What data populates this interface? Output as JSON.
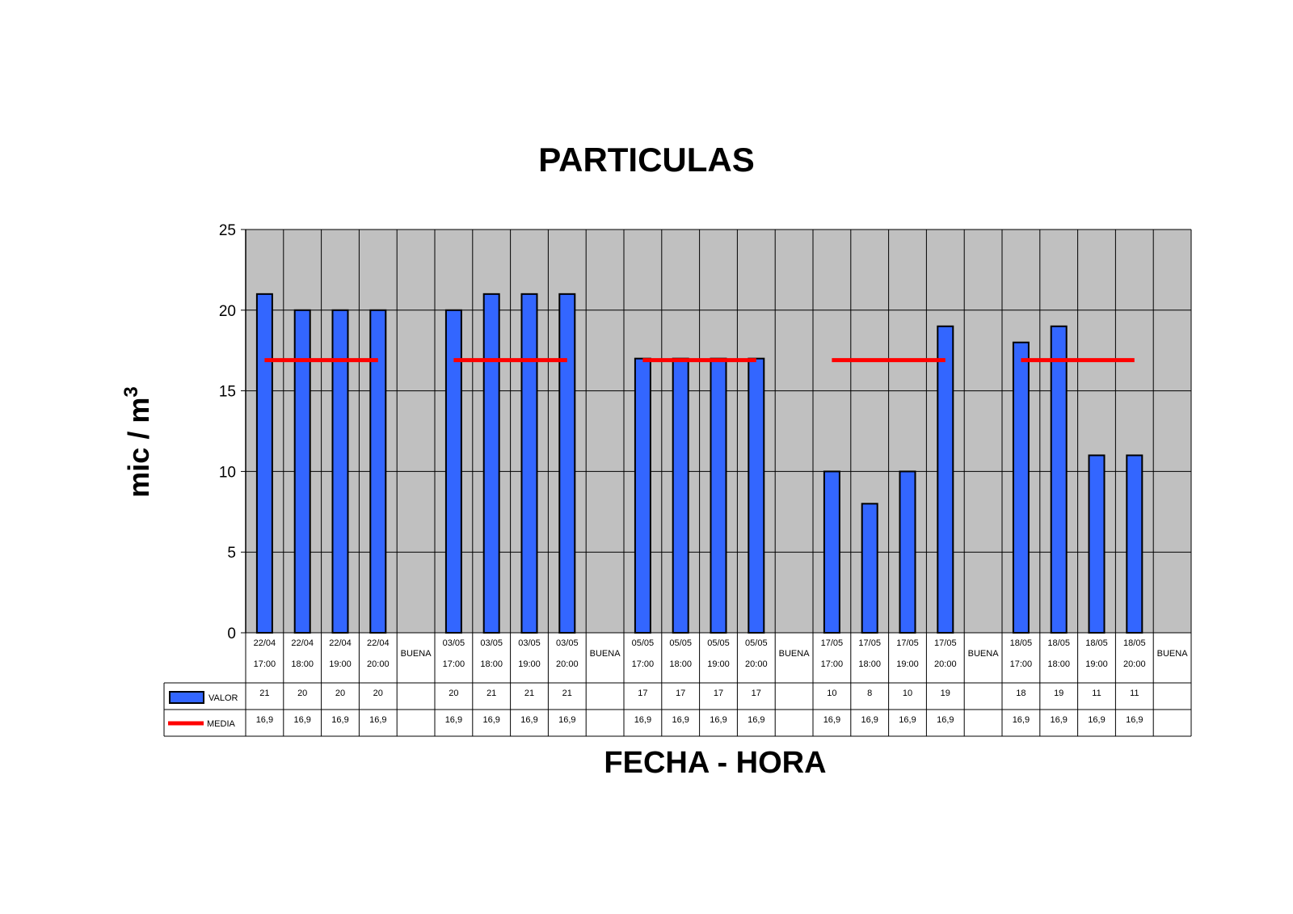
{
  "chart_data": {
    "type": "bar",
    "title": "PARTICULAS",
    "xlabel": "FECHA - HORA",
    "ylabel": "mic / m",
    "ylabel_superscript": "3",
    "ylim": [
      0,
      25
    ],
    "yticks": [
      "0",
      "5",
      "10",
      "15",
      "20",
      "25"
    ],
    "grid": true,
    "categories": [
      {
        "date": "22/04",
        "time": "17:00"
      },
      {
        "date": "22/04",
        "time": "18:00"
      },
      {
        "date": "22/04",
        "time": "19:00"
      },
      {
        "date": "22/04",
        "time": "20:00"
      },
      {
        "date": "BUENA",
        "time": ""
      },
      {
        "date": "03/05",
        "time": "17:00"
      },
      {
        "date": "03/05",
        "time": "18:00"
      },
      {
        "date": "03/05",
        "time": "19:00"
      },
      {
        "date": "03/05",
        "time": "20:00"
      },
      {
        "date": "BUENA",
        "time": ""
      },
      {
        "date": "05/05",
        "time": "17:00"
      },
      {
        "date": "05/05",
        "time": "18:00"
      },
      {
        "date": "05/05",
        "time": "19:00"
      },
      {
        "date": "05/05",
        "time": "20:00"
      },
      {
        "date": "BUENA",
        "time": ""
      },
      {
        "date": "17/05",
        "time": "17:00"
      },
      {
        "date": "17/05",
        "time": "18:00"
      },
      {
        "date": "17/05",
        "time": "19:00"
      },
      {
        "date": "17/05",
        "time": "20:00"
      },
      {
        "date": "BUENA",
        "time": ""
      },
      {
        "date": "18/05",
        "time": "17:00"
      },
      {
        "date": "18/05",
        "time": "18:00"
      },
      {
        "date": "18/05",
        "time": "19:00"
      },
      {
        "date": "18/05",
        "time": "20:00"
      },
      {
        "date": "BUENA",
        "time": ""
      }
    ],
    "series": [
      {
        "name": "VALOR",
        "type": "bar",
        "color": "#3366ff",
        "values": [
          21,
          20,
          20,
          20,
          null,
          20,
          21,
          21,
          21,
          null,
          17,
          17,
          17,
          17,
          null,
          10,
          8,
          10,
          19,
          null,
          18,
          19,
          11,
          11,
          null
        ],
        "labels": [
          "21",
          "20",
          "20",
          "20",
          "",
          "20",
          "21",
          "21",
          "21",
          "",
          "17",
          "17",
          "17",
          "17",
          "",
          "10",
          "8",
          "10",
          "19",
          "",
          "18",
          "19",
          "11",
          "11",
          ""
        ]
      },
      {
        "name": "MEDIA",
        "type": "line",
        "color": "#ff0000",
        "values": [
          16.9,
          16.9,
          16.9,
          16.9,
          null,
          16.9,
          16.9,
          16.9,
          16.9,
          null,
          16.9,
          16.9,
          16.9,
          16.9,
          null,
          16.9,
          16.9,
          16.9,
          16.9,
          null,
          16.9,
          16.9,
          16.9,
          16.9,
          null
        ],
        "labels": [
          "16,9",
          "16,9",
          "16,9",
          "16,9",
          "",
          "16,9",
          "16,9",
          "16,9",
          "16,9",
          "",
          "16,9",
          "16,9",
          "16,9",
          "16,9",
          "",
          "16,9",
          "16,9",
          "16,9",
          "16,9",
          "",
          "16,9",
          "16,9",
          "16,9",
          "16,9",
          ""
        ]
      }
    ],
    "colors": {
      "plot_background": "#c0c0c0",
      "gridline": "#000000"
    }
  }
}
